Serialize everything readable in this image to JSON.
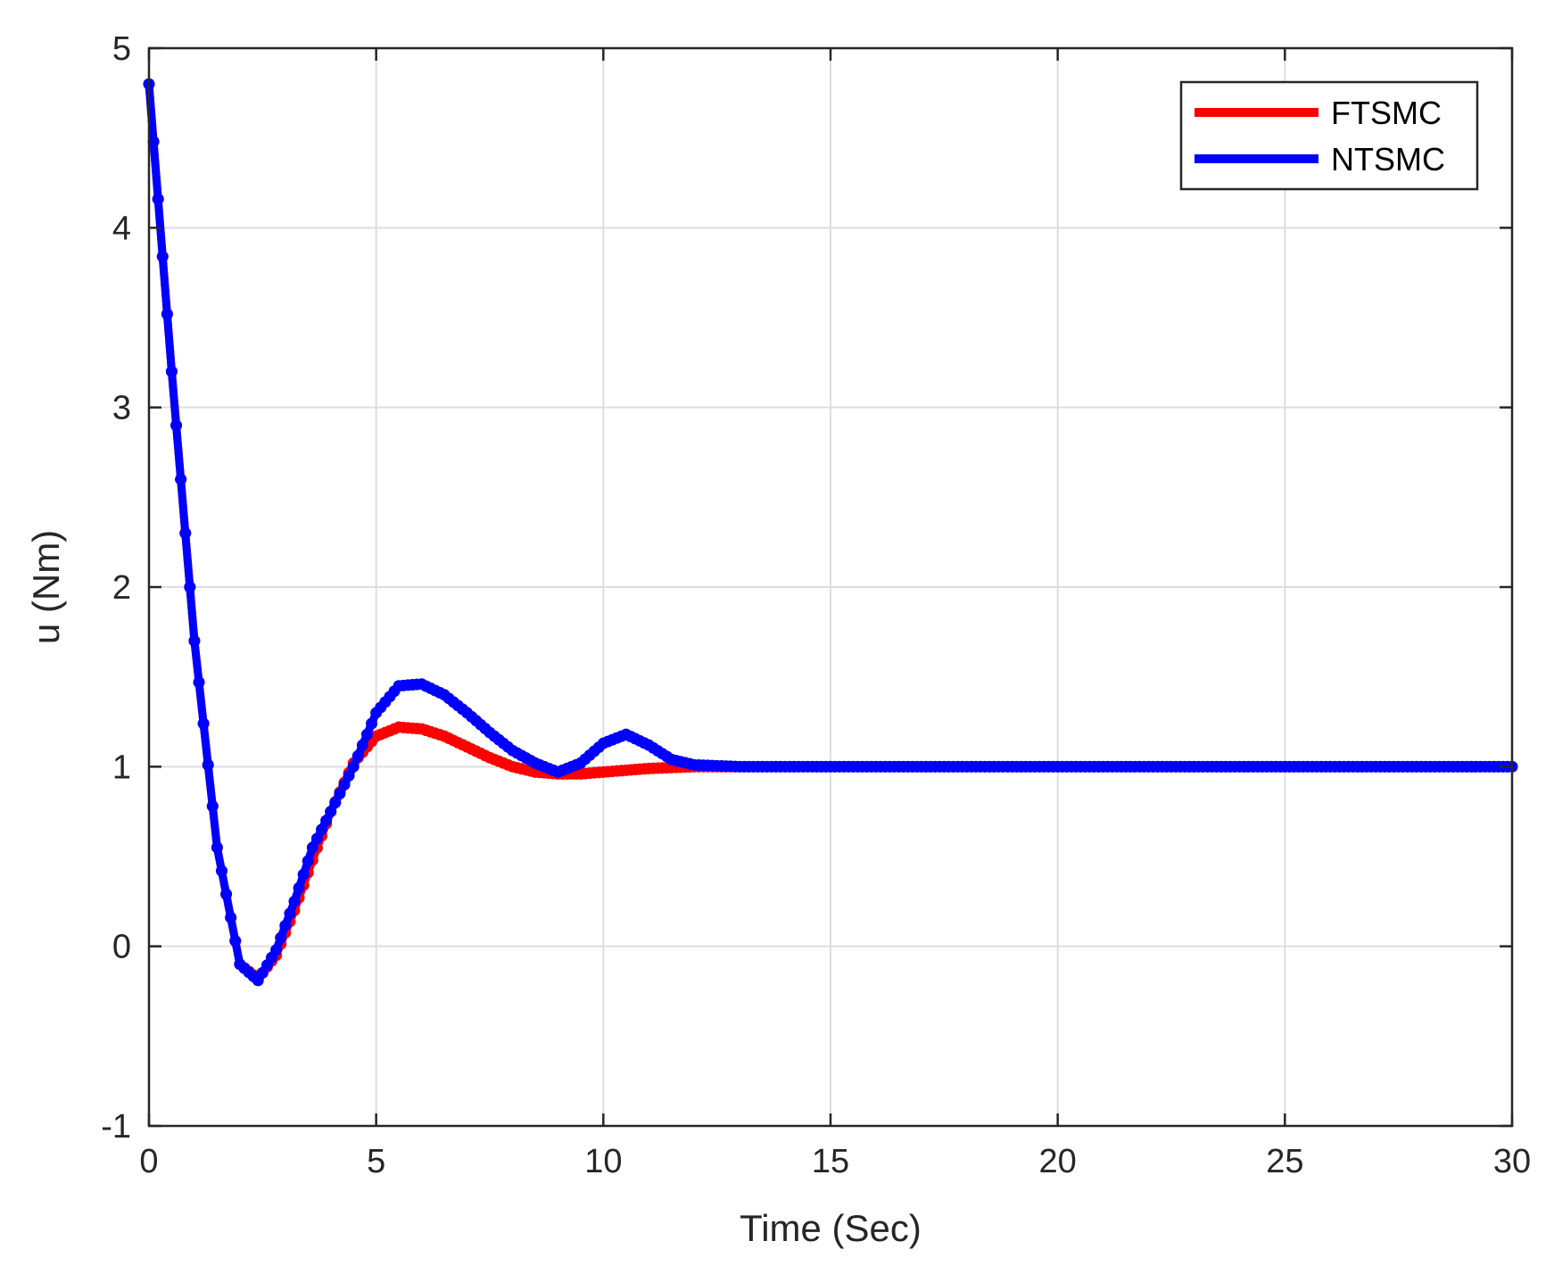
{
  "chart_data": {
    "type": "line",
    "title": "",
    "xlabel": "Time (Sec)",
    "ylabel": "u (Nm)",
    "xlim": [
      0,
      30
    ],
    "ylim": [
      -1,
      5
    ],
    "xticks": [
      "0",
      "5",
      "10",
      "15",
      "20",
      "25",
      "30"
    ],
    "yticks": [
      "-1",
      "0",
      "1",
      "2",
      "3",
      "4",
      "5"
    ],
    "grid": true,
    "legend_position": "top-right",
    "series": [
      {
        "name": "FTSMC",
        "color": "#ff0000",
        "x": [
          0,
          0.5,
          1,
          1.5,
          2,
          2.4,
          2.8,
          3.2,
          3.6,
          4,
          4.5,
          5,
          5.5,
          6,
          6.5,
          7,
          7.5,
          8,
          8.5,
          9,
          9.5,
          10,
          10.5,
          11,
          12,
          13,
          14,
          15,
          20,
          25,
          30
        ],
        "y": [
          4.8,
          3.2,
          1.7,
          0.55,
          -0.1,
          -0.18,
          -0.05,
          0.2,
          0.48,
          0.75,
          1.02,
          1.17,
          1.22,
          1.21,
          1.17,
          1.11,
          1.05,
          1.0,
          0.97,
          0.96,
          0.96,
          0.97,
          0.98,
          0.99,
          1.0,
          1.0,
          1.0,
          1.0,
          1.0,
          1.0,
          1.0
        ]
      },
      {
        "name": "NTSMC",
        "color": "#0000ff",
        "x": [
          0,
          0.5,
          1,
          1.5,
          2,
          2.4,
          2.8,
          3.2,
          3.6,
          4,
          4.5,
          5,
          5.5,
          6,
          6.5,
          7,
          7.5,
          8,
          8.5,
          9,
          9.5,
          10,
          10.5,
          11,
          11.5,
          12,
          13,
          14,
          15,
          20,
          25,
          30
        ],
        "y": [
          4.8,
          3.2,
          1.7,
          0.55,
          -0.1,
          -0.19,
          -0.02,
          0.25,
          0.55,
          0.75,
          1.0,
          1.3,
          1.45,
          1.46,
          1.4,
          1.3,
          1.19,
          1.09,
          1.02,
          0.97,
          1.02,
          1.13,
          1.18,
          1.12,
          1.04,
          1.01,
          1.0,
          1.0,
          1.0,
          1.0,
          1.0,
          1.0
        ]
      }
    ]
  }
}
